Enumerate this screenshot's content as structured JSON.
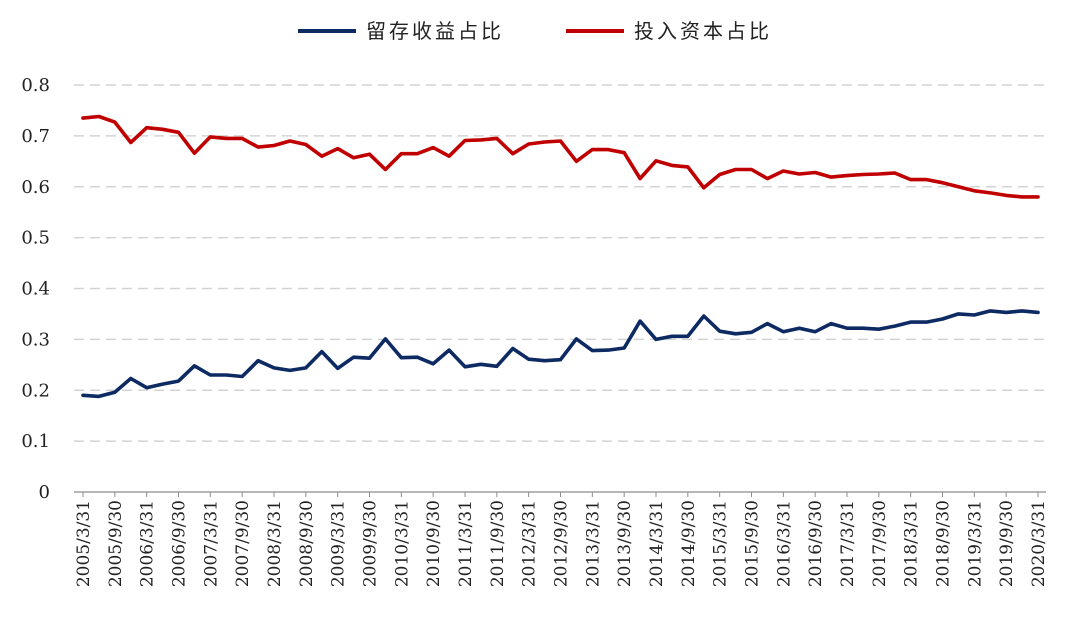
{
  "chart_data": {
    "type": "line",
    "title": "",
    "xlabel": "",
    "ylabel": "",
    "ylim": [
      0,
      0.8
    ],
    "yticks": [
      "0",
      "0.1",
      "0.2",
      "0.3",
      "0.4",
      "0.5",
      "0.6",
      "0.7",
      "0.8"
    ],
    "grid": "horizontal dashed",
    "legend_position": "top-center",
    "x": [
      "2005/3/31",
      "2005/6/30",
      "2005/9/30",
      "2005/12/31",
      "2006/3/31",
      "2006/6/30",
      "2006/9/30",
      "2006/12/31",
      "2007/3/31",
      "2007/6/30",
      "2007/9/30",
      "2007/12/31",
      "2008/3/31",
      "2008/6/30",
      "2008/9/30",
      "2008/12/31",
      "2009/3/31",
      "2009/6/30",
      "2009/9/30",
      "2009/12/31",
      "2010/3/31",
      "2010/6/30",
      "2010/9/30",
      "2010/12/31",
      "2011/3/31",
      "2011/6/30",
      "2011/9/30",
      "2011/12/31",
      "2012/3/31",
      "2012/6/30",
      "2012/9/30",
      "2012/12/31",
      "2013/3/31",
      "2013/6/30",
      "2013/9/30",
      "2013/12/31",
      "2014/3/31",
      "2014/6/30",
      "2014/9/30",
      "2014/12/31",
      "2015/3/31",
      "2015/6/30",
      "2015/9/30",
      "2015/12/31",
      "2016/3/31",
      "2016/6/30",
      "2016/9/30",
      "2016/12/31",
      "2017/3/31",
      "2017/6/30",
      "2017/9/30",
      "2017/12/31",
      "2018/3/31",
      "2018/6/30",
      "2018/9/30",
      "2018/12/31",
      "2019/3/31",
      "2019/6/30",
      "2019/9/30",
      "2019/12/31",
      "2020/3/31"
    ],
    "x_tick_labels": [
      "2005/3/31",
      "2005/9/30",
      "2006/3/31",
      "2006/9/30",
      "2007/3/31",
      "2007/9/30",
      "2008/3/31",
      "2008/9/30",
      "2009/3/31",
      "2009/9/30",
      "2010/3/31",
      "2010/9/30",
      "2011/3/31",
      "2011/9/30",
      "2012/3/31",
      "2012/9/30",
      "2013/3/31",
      "2013/9/30",
      "2014/3/31",
      "2014/9/30",
      "2015/3/31",
      "2015/9/30",
      "2016/3/31",
      "2016/9/30",
      "2017/3/31",
      "2017/9/30",
      "2018/3/31",
      "2018/9/30",
      "2019/3/31",
      "2019/9/30",
      "2020/3/31"
    ],
    "series": [
      {
        "name": "留存收益占比",
        "color": "#0e2a63",
        "values": [
          0.19,
          0.188,
          0.196,
          0.223,
          0.205,
          0.212,
          0.218,
          0.248,
          0.23,
          0.23,
          0.227,
          0.258,
          0.244,
          0.239,
          0.244,
          0.276,
          0.243,
          0.265,
          0.263,
          0.301,
          0.264,
          0.265,
          0.252,
          0.279,
          0.246,
          0.251,
          0.247,
          0.282,
          0.261,
          0.258,
          0.26,
          0.301,
          0.278,
          0.279,
          0.283,
          0.336,
          0.3,
          0.306,
          0.306,
          0.346,
          0.316,
          0.311,
          0.314,
          0.331,
          0.315,
          0.322,
          0.315,
          0.331,
          0.322,
          0.322,
          0.32,
          0.326,
          0.334,
          0.334,
          0.34,
          0.35,
          0.348,
          0.356,
          0.353,
          0.356,
          0.353
        ]
      },
      {
        "name": "投入资本占比",
        "color": "#c00000",
        "values": [
          0.735,
          0.738,
          0.727,
          0.687,
          0.716,
          0.713,
          0.707,
          0.666,
          0.698,
          0.695,
          0.695,
          0.678,
          0.681,
          0.69,
          0.683,
          0.66,
          0.675,
          0.657,
          0.664,
          0.634,
          0.665,
          0.665,
          0.677,
          0.66,
          0.691,
          0.692,
          0.695,
          0.665,
          0.684,
          0.688,
          0.69,
          0.65,
          0.673,
          0.673,
          0.667,
          0.616,
          0.651,
          0.642,
          0.639,
          0.598,
          0.624,
          0.634,
          0.634,
          0.616,
          0.631,
          0.625,
          0.628,
          0.619,
          0.622,
          0.624,
          0.625,
          0.627,
          0.614,
          0.614,
          0.608,
          0.6,
          0.592,
          0.588,
          0.583,
          0.58,
          0.58
        ]
      }
    ]
  }
}
